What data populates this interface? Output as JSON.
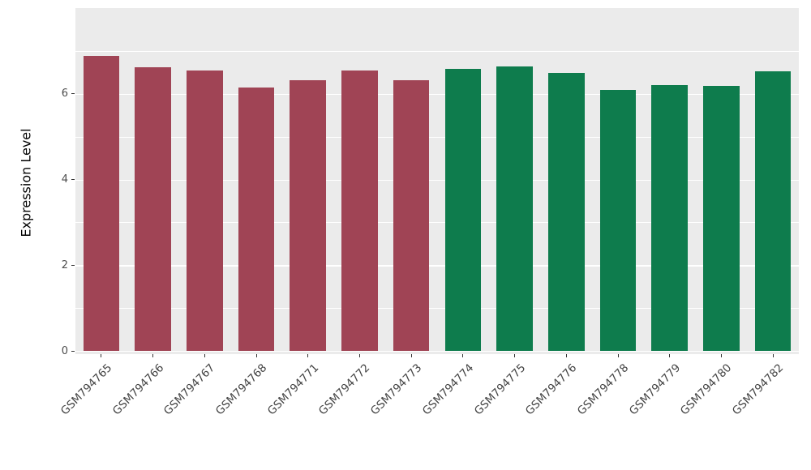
{
  "chart_data": {
    "type": "bar",
    "title": "",
    "xlabel": "",
    "ylabel": "Expression Level",
    "categories": [
      "GSM794765",
      "GSM794766",
      "GSM794767",
      "GSM794768",
      "GSM794771",
      "GSM794772",
      "GSM794773",
      "GSM794774",
      "GSM794775",
      "GSM794776",
      "GSM794778",
      "GSM794779",
      "GSM794780",
      "GSM794782"
    ],
    "values": [
      6.88,
      6.62,
      6.55,
      6.15,
      6.31,
      6.54,
      6.31,
      6.59,
      6.63,
      6.49,
      6.09,
      6.21,
      6.19,
      6.52
    ],
    "bar_groups": [
      "A",
      "A",
      "A",
      "A",
      "A",
      "A",
      "A",
      "B",
      "B",
      "B",
      "B",
      "B",
      "B",
      "B"
    ],
    "group_colors": {
      "A": "#A04455",
      "B": "#0E7C4D"
    },
    "ylim": [
      0,
      8
    ],
    "yticks": [
      0,
      2,
      4,
      6
    ],
    "yticks_minor": [
      1,
      3,
      5,
      7
    ],
    "grid": true,
    "legend_position": "none",
    "bar_width_fraction": 0.7
  },
  "style": {
    "panel_bg": "#EBEBEB",
    "grid_color": "#FFFFFF",
    "axis_text_color": "#4D4D4D",
    "axis_title_color": "#000000",
    "tick_color": "#333333"
  }
}
